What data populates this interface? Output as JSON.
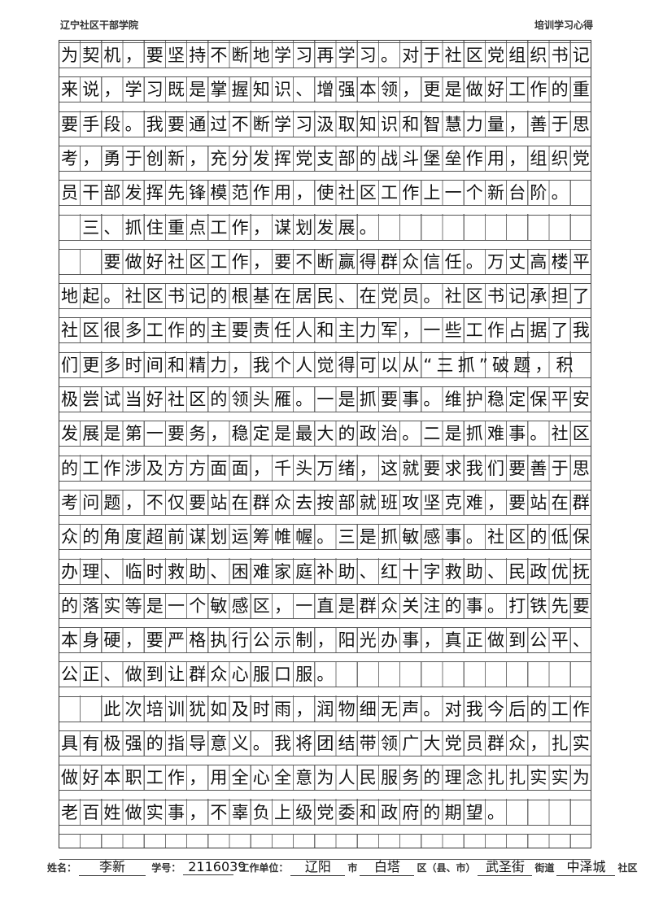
{
  "header": {
    "institution": "辽宁社区干部学院",
    "doc_type": "培训学习心得"
  },
  "lines": [
    "为契机，要坚持不断地学习再学习。对于社区党组织书记",
    "来说，学习既是掌握知识、增强本领，更是做好工作的重",
    "要手段。我要通过不断学习汲取知识和智慧力量，善于思",
    "考，勇于创新，充分发挥党支部的战斗堡垒作用，组织党",
    "员干部发挥先锋模范作用，使社区工作上一个新台阶。",
    "　三、抓住重点工作，谋划发展。",
    "　　要做好社区工作，要不断赢得群众信任。万丈高楼平",
    "地起。社区书记的根基在居民、在党员。社区书记承担了",
    "社区很多工作的主要责任人和主力军，一些工作占据了我",
    "们更多时间和精力，我个人觉得可以从“三抓”破题，积",
    "极尝试当好社区的领头雁。一是抓要事。维护稳定保平安",
    "发展是第一要务，稳定是最大的政治。二是抓难事。社区",
    "的工作涉及方方面面，千头万绪，这就要求我们要善于思",
    "考问题，不仅要站在群众去按部就班攻坚克难，要站在群",
    "众的角度超前谋划运筹帷幄。三是抓敏感事。社区的低保",
    "办理、临时救助、困难家庭补助、红十字救助、民政优抚",
    "的落实等是一个敏感区，一直是群众关注的事。打铁先要",
    "本身硬，要严格执行公示制，阳光办事，真正做到公平、",
    "公正、做到让群众心服口服。",
    "　　此次培训犹如及时雨，润物细无声。对我今后的工作",
    "具有极强的指导意义。我将团结带领广大党员群众，扎实",
    "做好本职工作，用全心全意为人民服务的理念扎扎实实为",
    "老百姓做实事，不辜负上级党委和政府的期望。"
  ],
  "footer": {
    "name_label": "姓名：",
    "name": "李新",
    "id_label": "学号：",
    "id": "2116039",
    "unit_label": "工作单位：",
    "city": "辽阳",
    "city_suffix": "市",
    "district": "白塔",
    "district_suffix": "区（县、市）",
    "street": "武圣街",
    "street_suffix": "街道",
    "community": "中泽城",
    "community_suffix": "社区"
  }
}
